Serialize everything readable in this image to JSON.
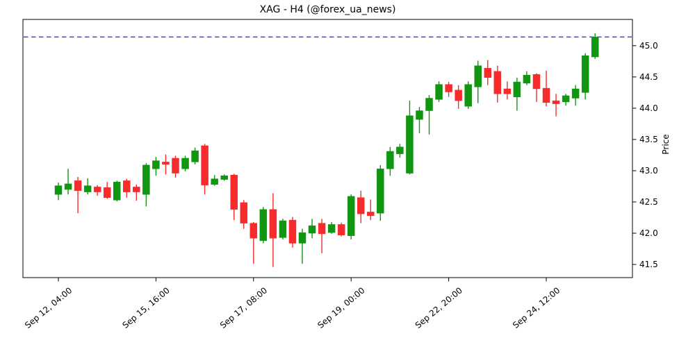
{
  "title": "XAG - H4 (@forex_ua_news)",
  "colors": {
    "up": "#119611",
    "down": "#f62c2c",
    "hline": "#2525e8",
    "axis": "#000000",
    "background": "#ffffff"
  },
  "chart_data": {
    "type": "candlestick",
    "title": "XAG - H4 (@forex_ua_news)",
    "ylabel": "Price",
    "ylim": [
      41.29,
      45.42
    ],
    "y_ticks": [
      "41.5",
      "42.0",
      "42.5",
      "43.0",
      "43.5",
      "44.0",
      "44.5",
      "45.0"
    ],
    "x_tick_labels": [
      "Sep 12, 04:00",
      "Sep 15, 16:00",
      "Sep 17, 08:00",
      "Sep 19, 00:00",
      "Sep 22, 20:00",
      "Sep 24, 12:00"
    ],
    "x_tick_indices": [
      0,
      10,
      20,
      30,
      40,
      50
    ],
    "hline": 45.14,
    "grid": false,
    "legend": "none",
    "ohlc_order": [
      "open",
      "high",
      "low",
      "close"
    ],
    "candles_ohlc": [
      [
        42.62,
        42.81,
        42.53,
        42.76
      ],
      [
        42.7,
        43.03,
        42.62,
        42.79
      ],
      [
        42.84,
        42.9,
        42.32,
        42.68
      ],
      [
        42.66,
        42.88,
        42.62,
        42.76
      ],
      [
        42.74,
        42.77,
        42.6,
        42.66
      ],
      [
        42.73,
        42.82,
        42.55,
        42.57
      ],
      [
        42.53,
        42.84,
        42.51,
        42.82
      ],
      [
        42.84,
        42.87,
        42.57,
        42.66
      ],
      [
        42.74,
        42.78,
        42.52,
        42.66
      ],
      [
        42.62,
        43.12,
        42.43,
        43.09
      ],
      [
        43.03,
        43.22,
        42.92,
        43.16
      ],
      [
        43.14,
        43.26,
        42.94,
        43.1
      ],
      [
        43.2,
        43.24,
        42.89,
        42.96
      ],
      [
        43.03,
        43.24,
        42.99,
        43.2
      ],
      [
        43.14,
        43.37,
        43.1,
        43.32
      ],
      [
        43.4,
        43.43,
        42.62,
        42.77
      ],
      [
        42.78,
        42.93,
        42.76,
        42.87
      ],
      [
        42.86,
        42.94,
        42.84,
        42.92
      ],
      [
        42.93,
        42.95,
        42.21,
        42.38
      ],
      [
        42.49,
        42.53,
        42.07,
        42.16
      ],
      [
        42.16,
        42.18,
        41.51,
        41.92
      ],
      [
        41.88,
        42.42,
        41.84,
        42.38
      ],
      [
        42.38,
        42.64,
        41.46,
        41.92
      ],
      [
        41.93,
        42.23,
        41.9,
        42.2
      ],
      [
        42.21,
        42.26,
        41.77,
        41.84
      ],
      [
        41.84,
        42.07,
        41.51,
        42.01
      ],
      [
        42.0,
        42.23,
        41.92,
        42.12
      ],
      [
        42.16,
        42.23,
        41.68,
        41.99
      ],
      [
        42.01,
        42.18,
        41.99,
        42.14
      ],
      [
        42.14,
        42.17,
        41.95,
        41.97
      ],
      [
        41.96,
        42.62,
        41.9,
        42.59
      ],
      [
        42.57,
        42.68,
        42.16,
        42.31
      ],
      [
        42.34,
        42.54,
        42.21,
        42.28
      ],
      [
        42.32,
        43.09,
        42.2,
        43.03
      ],
      [
        43.03,
        43.38,
        42.92,
        43.31
      ],
      [
        43.27,
        43.43,
        43.21,
        43.38
      ],
      [
        42.96,
        44.12,
        42.94,
        43.88
      ],
      [
        43.82,
        44.02,
        43.6,
        43.96
      ],
      [
        43.96,
        44.21,
        43.58,
        44.16
      ],
      [
        44.14,
        44.43,
        44.1,
        44.38
      ],
      [
        44.38,
        44.42,
        44.18,
        44.26
      ],
      [
        44.29,
        44.37,
        43.99,
        44.12
      ],
      [
        44.03,
        44.43,
        43.99,
        44.38
      ],
      [
        44.34,
        44.76,
        44.08,
        44.68
      ],
      [
        44.64,
        44.77,
        44.37,
        44.49
      ],
      [
        44.59,
        44.68,
        44.09,
        44.23
      ],
      [
        44.31,
        44.43,
        44.14,
        44.23
      ],
      [
        44.18,
        44.49,
        43.96,
        44.42
      ],
      [
        44.4,
        44.59,
        44.37,
        44.53
      ],
      [
        44.54,
        44.56,
        44.1,
        44.31
      ],
      [
        44.32,
        44.6,
        44.03,
        44.09
      ],
      [
        44.12,
        44.23,
        43.87,
        44.07
      ],
      [
        44.1,
        44.23,
        44.04,
        44.2
      ],
      [
        44.16,
        44.37,
        44.04,
        44.31
      ],
      [
        44.25,
        44.88,
        44.14,
        44.84
      ],
      [
        44.82,
        45.2,
        44.79,
        45.14
      ]
    ]
  }
}
